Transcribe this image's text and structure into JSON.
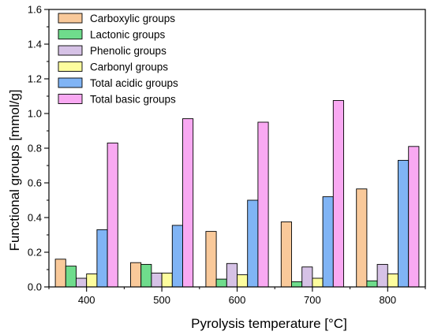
{
  "chart_data": {
    "type": "bar",
    "title": "",
    "xlabel": "Pyrolysis temperature [°C]",
    "ylabel": "Functional groups [mmol/g]",
    "categories": [
      "400",
      "500",
      "600",
      "700",
      "800"
    ],
    "ylim": [
      0,
      1.6
    ],
    "yticks": [
      "0.0",
      "0.2",
      "0.4",
      "0.6",
      "0.8",
      "1.0",
      "1.2",
      "1.4",
      "1.6"
    ],
    "grid": false,
    "legend_position": "top-left",
    "series": [
      {
        "name": "Carboxylic groups",
        "color": "#f9c99a",
        "values": [
          0.16,
          0.14,
          0.32,
          0.375,
          0.565
        ]
      },
      {
        "name": "Lactonic groups",
        "color": "#6fdc8c",
        "values": [
          0.12,
          0.13,
          0.045,
          0.03,
          0.035
        ]
      },
      {
        "name": "Phenolic groups",
        "color": "#d6c2e6",
        "values": [
          0.05,
          0.08,
          0.135,
          0.115,
          0.13
        ]
      },
      {
        "name": "Carbonyl groups",
        "color": "#fdfd9e",
        "values": [
          0.075,
          0.08,
          0.07,
          0.05,
          0.075
        ]
      },
      {
        "name": "Total acidic groups",
        "color": "#80b4f5",
        "values": [
          0.33,
          0.355,
          0.5,
          0.52,
          0.73
        ]
      },
      {
        "name": "Total basic groups",
        "color": "#f9a9f2",
        "values": [
          0.83,
          0.97,
          0.95,
          1.075,
          0.81
        ]
      }
    ]
  }
}
